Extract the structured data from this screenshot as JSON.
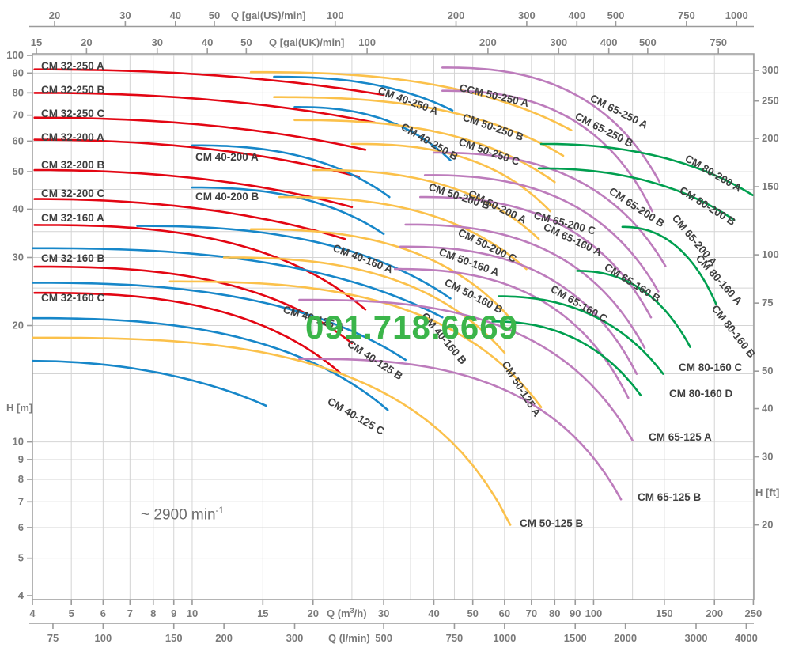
{
  "page": {
    "background": "#ffffff"
  },
  "watermark": {
    "text": "091.718.6669",
    "color": "#3bb54a"
  },
  "annotation": {
    "speed_prefix": "~ 2900 min",
    "speed_sup": "-1"
  },
  "chart_data": {
    "type": "line",
    "scale": "log-log",
    "title": "",
    "x_range_m3h": [
      4,
      250
    ],
    "y_range_m": [
      4,
      100
    ],
    "grid": {
      "x_m3h": [
        4,
        5,
        6,
        7,
        8,
        9,
        10,
        15,
        20,
        25,
        30,
        35,
        40,
        45,
        50,
        60,
        70,
        80,
        90,
        100,
        125,
        150,
        200,
        250
      ],
      "y_m": [
        5,
        6,
        7,
        8,
        9,
        10,
        15,
        20,
        25,
        30,
        35,
        40,
        45,
        50,
        60,
        70,
        80,
        90,
        100
      ]
    },
    "axes": {
      "top_gal_us": {
        "label": "Q [gal(US)/min]",
        "ticks": [
          20,
          30,
          40,
          50,
          100,
          200,
          300,
          400,
          500,
          750,
          1000
        ],
        "unit_to_m3h": 0.227125
      },
      "top_gal_uk": {
        "label": "Q [gal(UK)/min]",
        "ticks": [
          15,
          20,
          30,
          40,
          50,
          100,
          200,
          300,
          400,
          500,
          750
        ],
        "unit_to_m3h": 0.272765
      },
      "bottom_m3h": {
        "label_pre": "Q (m",
        "label_sup": "3",
        "label_post": "/h)",
        "ticks": [
          4,
          5,
          6,
          7,
          8,
          9,
          10,
          15,
          20,
          30,
          40,
          50,
          60,
          70,
          80,
          90,
          100,
          150,
          200,
          250
        ]
      },
      "bottom_lmin": {
        "label": "Q (l/min)",
        "ticks": [
          75,
          100,
          150,
          200,
          300,
          500,
          750,
          1000,
          1500,
          2000,
          3000,
          4000
        ],
        "unit_to_m3h": 0.06
      },
      "left_m": {
        "label": "H [m]",
        "ticks": [
          100,
          90,
          80,
          70,
          60,
          50,
          40,
          30,
          20,
          10,
          9,
          8,
          7,
          6,
          5,
          4
        ]
      },
      "right_ft": {
        "label": "H [ft]",
        "ticks": [
          300,
          250,
          200,
          150,
          100,
          75,
          50,
          40,
          30,
          20
        ],
        "unit_to_m": 0.3048
      }
    },
    "series_colors": {
      "CM 32": "#e30613",
      "CM 40": "#1787c9",
      "CM 50": "#fbc14b",
      "CM 65": "#bd7cbc",
      "CM 80": "#009f4f"
    },
    "curves": [
      {
        "label": "CM 32-250 A",
        "family": "CM 32",
        "q": [
          4.05,
          30
        ],
        "h": [
          92,
          79
        ],
        "p": 2.1,
        "t": [
          52,
          88,
          0
        ]
      },
      {
        "label": "CM 32-250 B",
        "family": "CM 32",
        "q": [
          4.05,
          28.5
        ],
        "h": [
          80,
          67
        ],
        "p": 2.1,
        "t": [
          52,
          118,
          0
        ]
      },
      {
        "label": "CM 32-250 C",
        "family": "CM 32",
        "q": [
          4.05,
          27
        ],
        "h": [
          69,
          57
        ],
        "p": 2.1,
        "t": [
          52,
          148,
          0
        ]
      },
      {
        "label": "CM 32-200 A",
        "family": "CM 32",
        "q": [
          4.05,
          26
        ],
        "h": [
          60.5,
          48.5
        ],
        "p": 2.1,
        "t": [
          52,
          178,
          0
        ]
      },
      {
        "label": "CM 32-200 B",
        "family": "CM 32",
        "q": [
          4.05,
          25
        ],
        "h": [
          50.5,
          40.5
        ],
        "p": 2.1,
        "t": [
          52,
          213,
          0
        ]
      },
      {
        "label": "CM 32-200 C",
        "family": "CM 32",
        "q": [
          4.05,
          24
        ],
        "h": [
          42.5,
          33.5
        ],
        "p": 2.1,
        "t": [
          52,
          249,
          0
        ]
      },
      {
        "label": "CM 32-160 A",
        "family": "CM 32",
        "q": [
          4.05,
          27
        ],
        "h": [
          36.4,
          22
        ],
        "p": 2.6,
        "t": [
          52,
          280,
          0
        ]
      },
      {
        "label": "CM 32-160 B",
        "family": "CM 32",
        "q": [
          4.05,
          25
        ],
        "h": [
          28.4,
          18
        ],
        "p": 2.6,
        "t": [
          52,
          331,
          0
        ]
      },
      {
        "label": "CM 32-160 C",
        "family": "CM 32",
        "q": [
          4.05,
          23.5
        ],
        "h": [
          24.3,
          15
        ],
        "p": 2.6,
        "t": [
          52,
          381,
          0
        ]
      },
      {
        "label": "CM 40-250 A",
        "family": "CM 40",
        "q": [
          16,
          44.5
        ],
        "h": [
          88,
          72
        ],
        "p": 2.4,
        "t": [
          477,
          118,
          20
        ]
      },
      {
        "label": "CM 40-250 B",
        "family": "CM 40",
        "q": [
          18,
          44
        ],
        "h": [
          73.5,
          53.5
        ],
        "p": 2.4,
        "t": [
          506,
          163,
          30
        ]
      },
      {
        "label": "CM 40-200 A",
        "family": "CM 40",
        "q": [
          10,
          31
        ],
        "h": [
          58.5,
          43
        ],
        "p": 2.4,
        "t": [
          247,
          203,
          0
        ]
      },
      {
        "label": "CM 40-200 B",
        "family": "CM 40",
        "q": [
          10,
          30
        ],
        "h": [
          45.5,
          34.5
        ],
        "p": 2.4,
        "t": [
          247,
          253,
          0
        ]
      },
      {
        "label": "CM 40-160 A",
        "family": "CM 40",
        "q": [
          7.3,
          44
        ],
        "h": [
          36.2,
          23.5
        ],
        "p": 2.4,
        "t": [
          420,
          317,
          21
        ]
      },
      {
        "label": "CM 40-160 B",
        "family": "CM 40",
        "q": [
          4,
          42
        ],
        "h": [
          31.7,
          21
        ],
        "p": 2.5,
        "t": [
          532,
          400,
          50
        ]
      },
      {
        "label": "CM 40-125 A",
        "family": "CM 40",
        "q": [
          4,
          34
        ],
        "h": [
          25.8,
          16.3
        ],
        "p": 2.5,
        "t": [
          357,
          395,
          17
        ]
      },
      {
        "label": "CM 40-125 B",
        "family": "CM 40",
        "q": [
          4,
          30.7
        ],
        "h": [
          20.9,
          12.1
        ],
        "p": 2.5,
        "t": [
          438,
          437,
          33
        ]
      },
      {
        "label": "CM 40-125 C",
        "family": "CM 40",
        "q": [
          4,
          15.3
        ],
        "h": [
          16.2,
          12.4
        ],
        "p": 2.0,
        "t": [
          413,
          510,
          30
        ]
      },
      {
        "label": "CCM 50-250 A",
        "family": "CM 50",
        "q": [
          14,
          88
        ],
        "h": [
          90.5,
          64
        ],
        "p": 2.5,
        "t": [
          580,
          115,
          13
        ]
      },
      {
        "label": "CM 50-250 B",
        "family": "CM 50",
        "q": [
          16,
          84
        ],
        "h": [
          78,
          55
        ],
        "p": 2.5,
        "t": [
          584,
          152,
          19
        ]
      },
      {
        "label": "CM 50-250 C",
        "family": "CM 50",
        "q": [
          18,
          80
        ],
        "h": [
          68,
          47
        ],
        "p": 2.5,
        "t": [
          579,
          183,
          19
        ]
      },
      {
        "label": "CM 50-200 A",
        "family": "CM 50",
        "q": [
          25,
          78
        ],
        "h": [
          59,
          39.5
        ],
        "p": 2.5,
        "t": [
          591,
          248,
          26
        ]
      },
      {
        "label": "CM 50-200 B",
        "family": "CM 50",
        "q": [
          20,
          73
        ],
        "h": [
          50.5,
          33.5
        ],
        "p": 2.5,
        "t": [
          541,
          240,
          18
        ]
      },
      {
        "label": "CM 50-200 C",
        "family": "CM 50",
        "q": [
          16.5,
          68
        ],
        "h": [
          43,
          28
        ],
        "p": 2.5,
        "t": [
          578,
          297,
          26
        ]
      },
      {
        "label": "CM 50-160 A",
        "family": "CM 50",
        "q": [
          14,
          63
        ],
        "h": [
          35.5,
          20.5
        ],
        "p": 2.5,
        "t": [
          554,
          322,
          20
        ]
      },
      {
        "label": "CM 50-160 B",
        "family": "CM 50",
        "q": [
          12,
          60
        ],
        "h": [
          30,
          17
        ],
        "p": 2.5,
        "t": [
          561,
          360,
          27
        ]
      },
      {
        "label": "CM 50-125 A",
        "family": "CM 50",
        "q": [
          8.8,
          74
        ],
        "h": [
          26,
          12.3
        ],
        "p": 2.7,
        "t": [
          634,
          460,
          58
        ]
      },
      {
        "label": "CM 50-125 B",
        "family": "CM 50",
        "q": [
          4,
          62
        ],
        "h": [
          18.6,
          6.1
        ],
        "p": 2.85,
        "t": [
          657,
          666,
          0
        ]
      },
      {
        "label": "CM 65-250 A",
        "family": "CM 65",
        "q": [
          42,
          146
        ],
        "h": [
          93,
          47
        ],
        "p": 2.45,
        "t": [
          745,
          127,
          27
        ]
      },
      {
        "label": "CM 65-250 B",
        "family": "CM 65",
        "q": [
          42,
          140
        ],
        "h": [
          81,
          39.5
        ],
        "p": 2.45,
        "t": [
          726,
          150,
          27
        ]
      },
      {
        "label": "CM 65-200 A",
        "family": "CM 65",
        "q": [
          40,
          151
        ],
        "h": [
          56,
          28.5
        ],
        "p": 2.45,
        "t": [
          849,
          276,
          50
        ]
      },
      {
        "label": "CM 65-200 B",
        "family": "CM 65",
        "q": [
          38,
          145
        ],
        "h": [
          49,
          24.5
        ],
        "p": 2.45,
        "t": [
          769,
          244,
          33
        ]
      },
      {
        "label": "CM 65-200 C",
        "family": "CM 65",
        "q": [
          37,
          139
        ],
        "h": [
          43,
          21
        ],
        "p": 2.45,
        "t": [
          674,
          276,
          15
        ]
      },
      {
        "label": "CM 65-160 A",
        "family": "CM 65",
        "q": [
          34,
          134
        ],
        "h": [
          36.5,
          17.5
        ],
        "p": 2.45,
        "t": [
          686,
          290,
          25
        ]
      },
      {
        "label": "CM 65-160 B",
        "family": "CM 65",
        "q": [
          33,
          128
        ],
        "h": [
          32,
          15
        ],
        "p": 2.45,
        "t": [
          763,
          340,
          32
        ]
      },
      {
        "label": "CM 65-160 C",
        "family": "CM 65",
        "q": [
          32,
          122
        ],
        "h": [
          28,
          13
        ],
        "p": 2.45,
        "t": [
          695,
          368,
          30
        ]
      },
      {
        "label": "CM 65-125 A",
        "family": "CM 65",
        "q": [
          18.5,
          125
        ],
        "h": [
          23.3,
          10.1
        ],
        "p": 2.7,
        "t": [
          820,
          557,
          0
        ]
      },
      {
        "label": "CM 65-125 B",
        "family": "CM 65",
        "q": [
          18.5,
          117
        ],
        "h": [
          16.4,
          7.1
        ],
        "p": 2.7,
        "t": [
          806,
          633,
          0
        ]
      },
      {
        "label": "CM 80-200 A",
        "family": "CM 80",
        "q": [
          74,
          249
        ],
        "h": [
          59,
          43.5
        ],
        "p": 2.2,
        "t": [
          865,
          203,
          30
        ]
      },
      {
        "label": "CM 80-200 B",
        "family": "CM 80",
        "q": [
          73,
          224
        ],
        "h": [
          51,
          37.5
        ],
        "p": 2.2,
        "t": [
          858,
          243,
          32
        ]
      },
      {
        "label": "CM 80-160 A",
        "family": "CM 80",
        "q": [
          118,
          202
        ],
        "h": [
          36,
          22.7
        ],
        "p": 2.2,
        "t": [
          879,
          327,
          48
        ]
      },
      {
        "label": "CM 80-160 B",
        "family": "CM 80",
        "q": [
          91,
          174
        ],
        "h": [
          27.7,
          17.6
        ],
        "p": 2.2,
        "t": [
          899,
          390,
          52
        ]
      },
      {
        "label": "CM 80-160 C",
        "family": "CM 80",
        "q": [
          58,
          149
        ],
        "h": [
          23.8,
          15
        ],
        "p": 2.2,
        "t": [
          858,
          469,
          0
        ]
      },
      {
        "label": "CM 80-160 D",
        "family": "CM 80",
        "q": [
          56,
          131
        ],
        "h": [
          20.5,
          13.2
        ],
        "p": 2.2,
        "t": [
          846,
          502,
          0
        ]
      }
    ],
    "legend_position": "none",
    "grid_on": true
  }
}
